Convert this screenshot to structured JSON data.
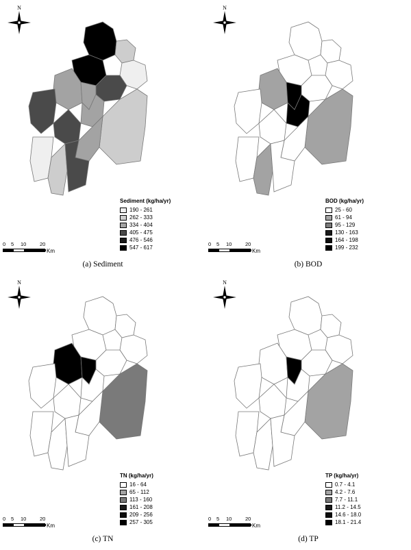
{
  "compass_letter": "N",
  "scale": {
    "ticks": [
      "0",
      "5",
      "10",
      "20"
    ],
    "unit": "Km"
  },
  "panels": [
    {
      "caption": "(a)  Sediment",
      "legend_title": "Sediment (kg/ha/yr)",
      "classes": [
        {
          "label": "190  -  261",
          "color": "#efefef"
        },
        {
          "label": "262  -  333",
          "color": "#cdcdcd"
        },
        {
          "label": "334  -  404",
          "color": "#a3a3a3"
        },
        {
          "label": "405  -  475",
          "color": "#4a4a4a"
        },
        {
          "label": "476  -  546",
          "color": "#1a1a1a"
        },
        {
          "label": "547  -  617",
          "color": "#000000"
        }
      ]
    },
    {
      "caption": "(b)  BOD",
      "legend_title": "BOD (kg/ha/yr)",
      "classes": [
        {
          "label": "25  -  60",
          "color": "#ffffff"
        },
        {
          "label": "61  -  94",
          "color": "#a3a3a3"
        },
        {
          "label": "95  -  129",
          "color": "#7a7a7a"
        },
        {
          "label": "130  -  163",
          "color": "#1a1a1a"
        },
        {
          "label": "164  -  198",
          "color": "#0d0d0d"
        },
        {
          "label": "199  -  232",
          "color": "#000000"
        }
      ]
    },
    {
      "caption": "(c)  TN",
      "legend_title": "TN (kg/ha/yr)",
      "classes": [
        {
          "label": "16  -  64",
          "color": "#ffffff"
        },
        {
          "label": "65  -  112",
          "color": "#a3a3a3"
        },
        {
          "label": "113  -  160",
          "color": "#7a7a7a"
        },
        {
          "label": "161  -  208",
          "color": "#1a1a1a"
        },
        {
          "label": "209  -  256",
          "color": "#0d0d0d"
        },
        {
          "label": "257  -  305",
          "color": "#000000"
        }
      ]
    },
    {
      "caption": "(d)  TP",
      "legend_title": "TP (kg/ha/yr)",
      "classes": [
        {
          "label": "0.7  -  4.1",
          "color": "#ffffff"
        },
        {
          "label": "4.2  -  7.6",
          "color": "#a3a3a3"
        },
        {
          "label": "7.7  -  11.1",
          "color": "#7a7a7a"
        },
        {
          "label": "11.2  -  14.5",
          "color": "#1a1a1a"
        },
        {
          "label": "14.6  -  18.0",
          "color": "#0d0d0d"
        },
        {
          "label": "18.1  -  21.4",
          "color": "#000000"
        }
      ]
    }
  ],
  "subbasin_class": [
    [
      5,
      5,
      1,
      0,
      3,
      2,
      2,
      2,
      1,
      3,
      3,
      2,
      0,
      1,
      3
    ],
    [
      0,
      0,
      0,
      0,
      0,
      1,
      5,
      5,
      1,
      0,
      0,
      0,
      0,
      1,
      0
    ],
    [
      0,
      0,
      0,
      0,
      0,
      5,
      5,
      0,
      2,
      0,
      0,
      0,
      0,
      0,
      0
    ],
    [
      0,
      0,
      0,
      0,
      0,
      0,
      5,
      0,
      1,
      0,
      0,
      0,
      0,
      0,
      0
    ]
  ]
}
